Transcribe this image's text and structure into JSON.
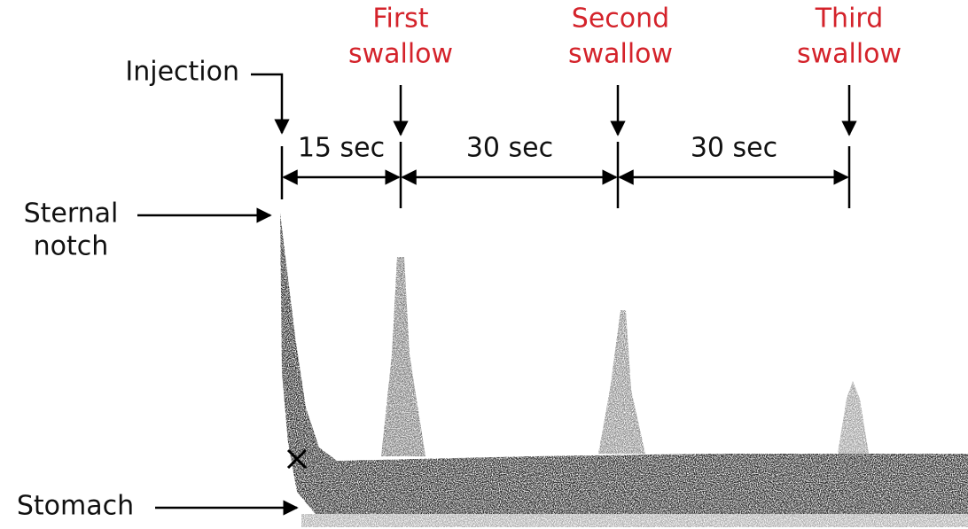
{
  "injection": "Injection",
  "swallows": [
    [
      "First",
      "swallow"
    ],
    [
      "Second",
      "swallow"
    ],
    [
      "Third",
      "swallow"
    ]
  ],
  "intervals": [
    "15 sec",
    "30 sec",
    "30 sec"
  ],
  "sternal_notch": [
    "Sternal",
    "notch"
  ],
  "stomach": "Stomach"
}
